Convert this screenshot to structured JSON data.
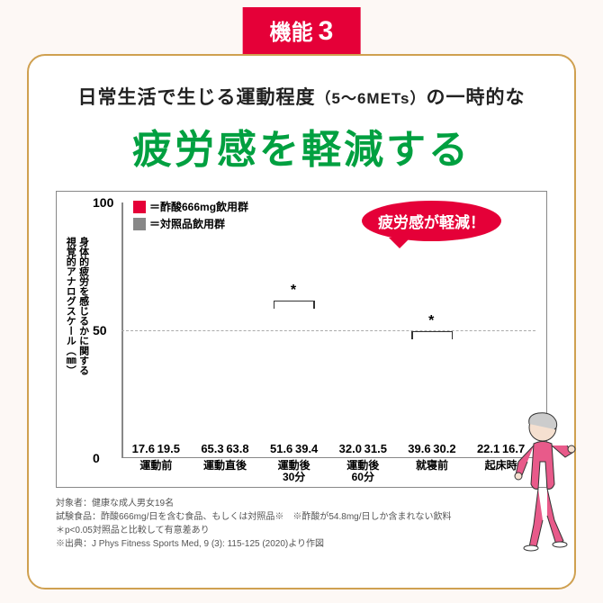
{
  "badge": {
    "label": "機能",
    "num": "3"
  },
  "title": {
    "line1_a": "日常生活で生じる運動程度",
    "line1_b": "（5〜6METs）",
    "line1_c": "の一時的な",
    "line2": "疲労感を軽減する"
  },
  "colors": {
    "accent": "#e50038",
    "green": "#00a040",
    "gray": "#888",
    "gold": "#cfa050",
    "bg": "#fdf8f5"
  },
  "chart": {
    "type": "bar",
    "ylabel": "身体的疲労を感じるかに関する\n視覚的アナログスケール（㎜）",
    "ylim": [
      0,
      100
    ],
    "yticks": [
      0,
      50,
      100
    ],
    "legend": [
      {
        "color": "red",
        "label": "＝酢酸666mg飲用群"
      },
      {
        "color": "gray",
        "label": "＝対照品飲用群"
      }
    ],
    "callout": "疲労感が軽減！",
    "categories": [
      "運動前",
      "運動直後",
      "運動後\n30分",
      "運動後\n60分",
      "就寝前",
      "起床時"
    ],
    "series": {
      "gray": [
        17.6,
        65.3,
        51.6,
        32.0,
        39.6,
        22.1
      ],
      "red": [
        19.5,
        63.8,
        39.4,
        31.5,
        30.2,
        16.7
      ]
    },
    "sig": [
      {
        "group": 2,
        "label": "*"
      },
      {
        "group": 4,
        "label": "*"
      }
    ]
  },
  "notes": {
    "n1": "対象者：健康な成人男女19名",
    "n2": "試験食品：酢酸666mg/日を含む食品、もしくは対照品※　※酢酸が54.8mg/日しか含まれない飲料",
    "n3": "＊p<0.05対照品と比較して有意差あり",
    "n4": "※出典：J Phys Fitness Sports Med, 9 (3): 115-125 (2020)より作図"
  }
}
